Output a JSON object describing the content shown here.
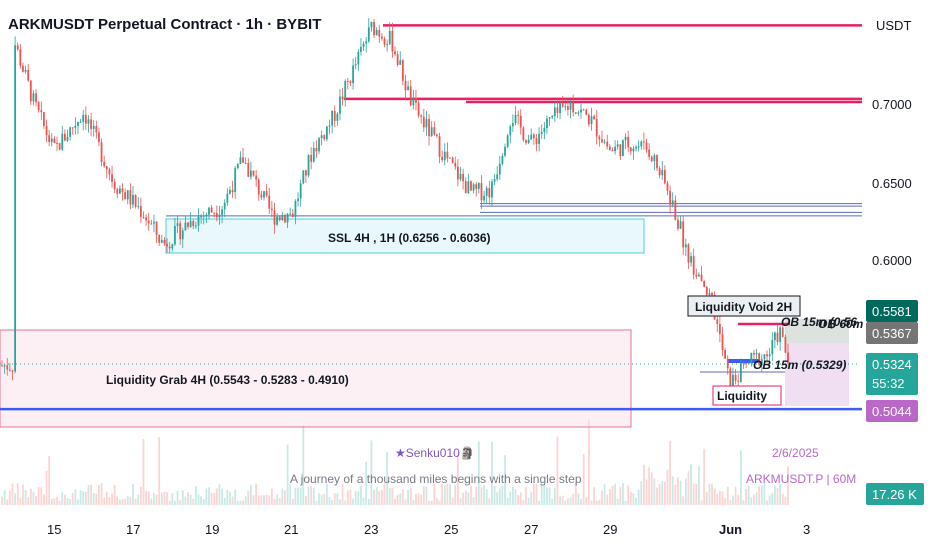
{
  "header": {
    "title": "ARKMUSDT Perpetual Contract · 1h · BYBIT"
  },
  "price_axis": {
    "currency": "USDT",
    "ticks": [
      "0.7000",
      "0.6500",
      "0.6000"
    ],
    "badges": [
      {
        "label": "0.5581",
        "color": "#00695c"
      },
      {
        "label": "0.5367",
        "color": "#757575"
      },
      {
        "label": "0.5324",
        "color": "#26a69a"
      },
      {
        "label": "55:32",
        "color": "#26a69a"
      },
      {
        "label": "0.5044",
        "color": "#ba68c8"
      },
      {
        "label": "17.26 K",
        "color": "#26a69a"
      }
    ]
  },
  "time_axis": {
    "ticks": [
      "15",
      "17",
      "19",
      "21",
      "23",
      "25",
      "27",
      "29",
      "Jun",
      "3"
    ]
  },
  "annotations": {
    "ssl": "SSL 4H , 1H (0.6256 - 0.6036)",
    "liquidity_grab": "Liquidity Grab 4H (0.5543 - 0.5283 - 0.4910)",
    "liquidity_void": "Liquidity Void 2H",
    "ob_15m_upper": "OB 15m (0.56",
    "ob_60m": "OB 60m",
    "ob_15m_lower": "OB 15m (0.5329)",
    "liquidity": "Liquidity"
  },
  "watermark": {
    "author": "★Senku010🗿",
    "quote": "A journey of a thousand miles begins with a single step",
    "date": "2/6/2025",
    "symbol": "ARKMUSDT.P | 60M"
  },
  "colors": {
    "up": "#26a69a",
    "down": "#ef5350",
    "level": "#e91e63",
    "blue": "#3d5afe"
  },
  "chart_data": {
    "type": "candlestick",
    "title": "ARKMUSDT Perpetual Contract · 1h · BYBIT",
    "interval": "1h",
    "ylim": [
      0.47,
      0.74
    ],
    "close_path": [
      [
        "May 14 00:00",
        0.74
      ],
      [
        "May 14 12:00",
        0.7
      ],
      [
        "May 15 00:00",
        0.67
      ],
      [
        "May 15 18:00",
        0.695
      ],
      [
        "May 16 12:00",
        0.65
      ],
      [
        "May 17 06:00",
        0.63
      ],
      [
        "May 17 18:00",
        0.61
      ],
      [
        "May 18 12:00",
        0.626
      ],
      [
        "May 19 06:00",
        0.635
      ],
      [
        "May 19 18:00",
        0.665
      ],
      [
        "May 20 12:00",
        0.628
      ],
      [
        "May 21 00:00",
        0.63
      ],
      [
        "May 21 12:00",
        0.67
      ],
      [
        "May 22 00:00",
        0.69
      ],
      [
        "May 22 12:00",
        0.72
      ],
      [
        "May 23 00:00",
        0.75
      ],
      [
        "May 23 12:00",
        0.74
      ],
      [
        "May 24 00:00",
        0.7
      ],
      [
        "May 24 12:00",
        0.68
      ],
      [
        "May 25 00:00",
        0.66
      ],
      [
        "May 25 12:00",
        0.643
      ],
      [
        "May 26 00:00",
        0.645
      ],
      [
        "May 26 12:00",
        0.693
      ],
      [
        "May 27 00:00",
        0.675
      ],
      [
        "May 27 12:00",
        0.69
      ],
      [
        "May 28 00:00",
        0.7
      ],
      [
        "May 28 12:00",
        0.69
      ],
      [
        "May 29 00:00",
        0.67
      ],
      [
        "May 29 12:00",
        0.675
      ],
      [
        "May 30 00:00",
        0.67
      ],
      [
        "May 30 12:00",
        0.64
      ],
      [
        "May 31 00:00",
        0.6
      ],
      [
        "May 31 12:00",
        0.58
      ],
      [
        "Jun 01 00:00",
        0.52
      ],
      [
        "Jun 01 12:00",
        0.535
      ],
      [
        "Jun 02 00:00",
        0.54
      ],
      [
        "Jun 02 06:00",
        0.555
      ],
      [
        "Jun 02 12:00",
        0.5324
      ]
    ],
    "horizontal_levels": [
      0.7504,
      0.7033,
      0.7013,
      0.6361,
      0.6345,
      0.6305,
      0.6283,
      0.5044
    ],
    "zones": [
      {
        "label": "SSL 4H , 1H (0.6256 - 0.6036)",
        "from": 0.6256,
        "to": 0.6036
      },
      {
        "label": "Liquidity Grab 4H (0.5543 - 0.5283 - 0.4910)",
        "from": 0.5543,
        "to": 0.491
      }
    ],
    "last_price": 0.5324,
    "volume_last": "17.26 K"
  }
}
